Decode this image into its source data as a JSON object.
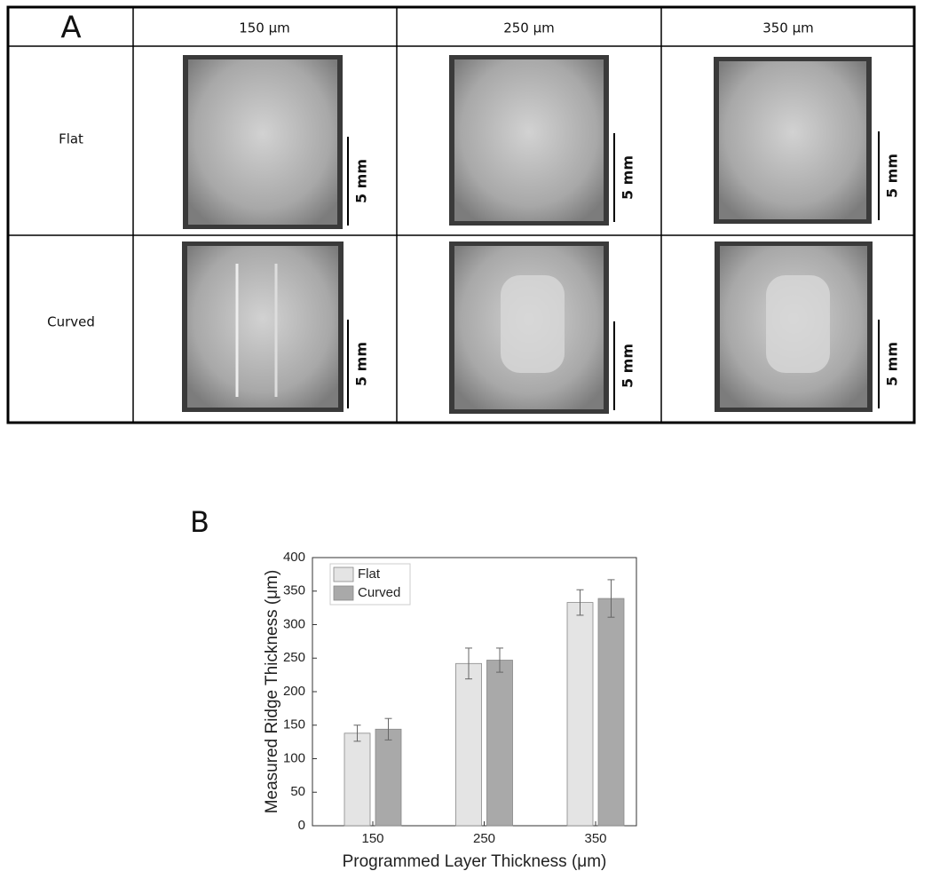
{
  "panel_a": {
    "label": "A",
    "columns": [
      "150 µm",
      "250 µm",
      "350 µm"
    ],
    "rows": [
      "Flat",
      "Curved"
    ],
    "scale_bar": "5 mm"
  },
  "panel_b_label": "B",
  "chart_data": {
    "type": "bar",
    "categories": [
      "150",
      "250",
      "350"
    ],
    "series": [
      {
        "name": "Flat",
        "color": "#e4e4e4",
        "values": [
          138,
          242,
          333
        ],
        "errors": [
          12,
          23,
          19
        ]
      },
      {
        "name": "Curved",
        "color": "#a9a9a9",
        "values": [
          144,
          247,
          339
        ],
        "errors": [
          16,
          18,
          28
        ]
      }
    ],
    "xlabel": "Programmed Layer Thickness (μm)",
    "ylabel": "Measured Ridge Thickness (μm)",
    "ylim": [
      0,
      400
    ],
    "yticks": [
      0,
      50,
      100,
      150,
      200,
      250,
      300,
      350,
      400
    ],
    "legend": "upper left",
    "grid": false
  }
}
